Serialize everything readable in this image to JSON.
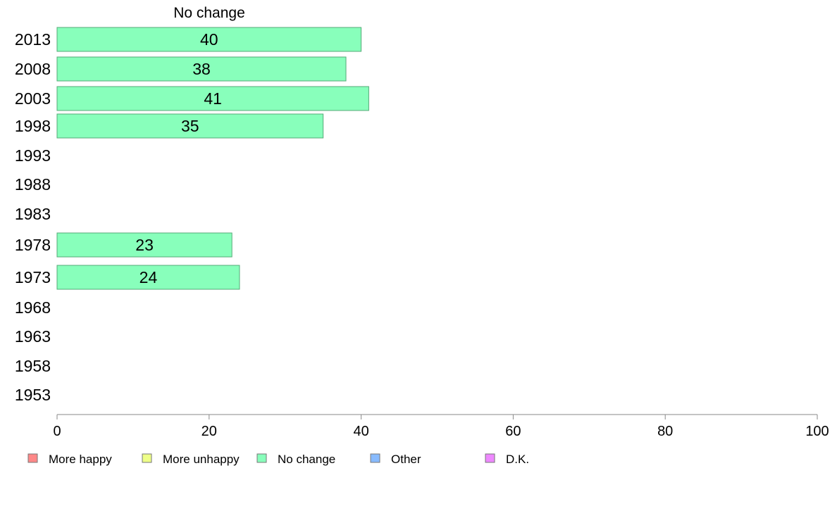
{
  "chart_data": {
    "type": "bar",
    "orientation": "horizontal",
    "title": "No change",
    "categories": [
      "2013",
      "2008",
      "2003",
      "1998",
      "1993",
      "1988",
      "1983",
      "1978",
      "1973",
      "1968",
      "1963",
      "1958",
      "1953"
    ],
    "series": [
      {
        "name": "No change",
        "color": "#88ffbb",
        "values": [
          40,
          38,
          41,
          35,
          null,
          null,
          null,
          23,
          24,
          null,
          null,
          null,
          null
        ],
        "data_labels": [
          "40",
          "38",
          "41",
          "35",
          "",
          "",
          "",
          "23",
          "24",
          "",
          "",
          "",
          ""
        ]
      }
    ],
    "xlim": [
      0,
      100
    ],
    "xticks": [
      "0",
      "20",
      "40",
      "60",
      "80",
      "100"
    ],
    "grid": false,
    "legend": {
      "placement": "bottom",
      "items": [
        {
          "label": "More happy",
          "color": "#ff8888"
        },
        {
          "label": "More unhappy",
          "color": "#eeff88"
        },
        {
          "label": "No change",
          "color": "#88ffbb"
        },
        {
          "label": "Other",
          "color": "#88bbff"
        },
        {
          "label": "D.K.",
          "color": "#ee88ff"
        }
      ]
    }
  }
}
